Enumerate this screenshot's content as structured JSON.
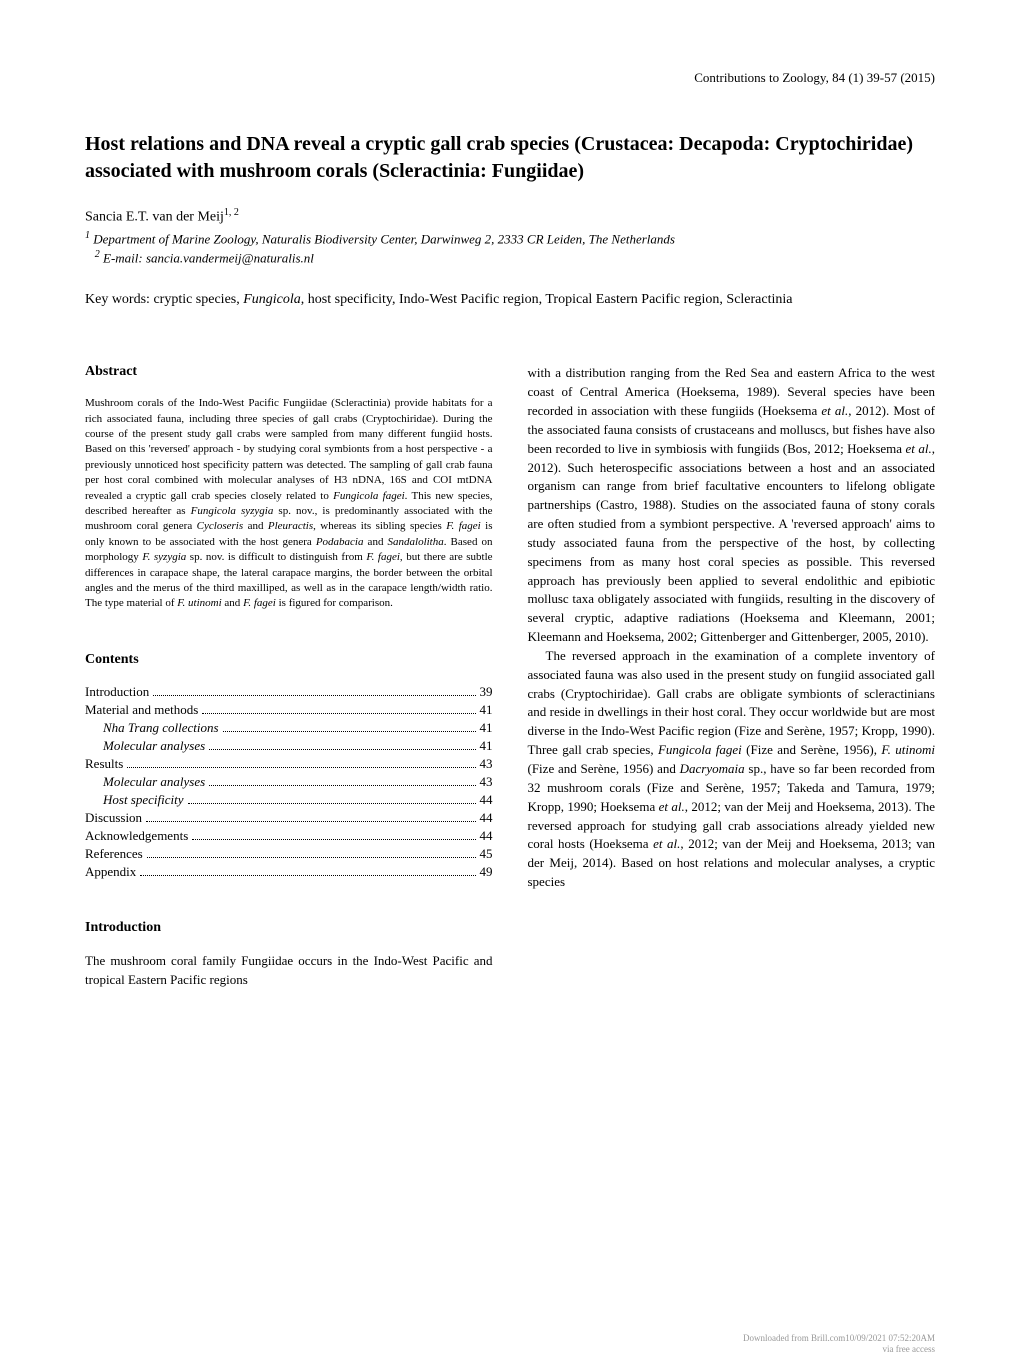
{
  "journal": {
    "name": "Contributions to Zoology",
    "volume": "84 (1)",
    "pages": "39-57",
    "year": "(2015)"
  },
  "title": "Host relations and DNA reveal a cryptic gall crab species (Crustacea: Decapoda: Cryptochiridae) associated with mushroom corals (Scleractinia: Fungiidae)",
  "author": {
    "name": "Sancia E.T. van der Meij",
    "sup": "1, 2"
  },
  "affiliations": {
    "line1_sup": "1",
    "line1": " Department of Marine Zoology, Naturalis Biodiversity Center, Darwinweg 2, 2333 CR Leiden, The Netherlands",
    "line2_sup": "2",
    "line2": " E-mail: sancia.vandermeij@naturalis.nl"
  },
  "keywords": {
    "label": "Key words: ",
    "text_before_italic": "cryptic species, ",
    "italic1": "Fungicola",
    "text_after": ", host specificity, Indo-West Pacific region, Tropical Eastern Pacific region, Scleractinia"
  },
  "abstract": {
    "heading": "Abstract",
    "text": "Mushroom corals of the Indo-West Pacific Fungiidae (Scleractinia) provide habitats for a rich associated fauna, including three species of gall crabs (Cryptochiridae). During the course of the present study gall crabs were sampled from many different fungiid hosts. Based on this 'reversed' approach - by studying coral symbionts from a host perspective - a previously unnoticed host specificity pattern was detected. The sampling of gall crab fauna per host coral combined with molecular analyses of H3 nDNA, 16S and COI mtDNA revealed a cryptic gall crab species closely related to Fungicola fagei. This new species, described hereafter as Fungicola syzygia sp. nov., is predominantly associated with the mushroom coral genera Cycloseris and Pleuractis, whereas its sibling species F. fagei is only known to be associated with the host genera Podabacia and Sandalolitha. Based on morphology F. syzygia sp. nov. is difficult to distinguish from F. fagei, but there are subtle differences in carapace shape, the lateral carapace margins, the border between the orbital angles and the merus of the third maxilliped, as well as in the carapace length/width ratio. The type material of F. utinomi and F. fagei is figured for comparison."
  },
  "contents": {
    "heading": "Contents",
    "items": [
      {
        "label": "Introduction",
        "page": "39",
        "indent": false
      },
      {
        "label": "Material and methods",
        "page": "41",
        "indent": false
      },
      {
        "label": "Nha Trang collections",
        "page": "41",
        "indent": true
      },
      {
        "label": "Molecular analyses",
        "page": "41",
        "indent": true
      },
      {
        "label": "Results",
        "page": "43",
        "indent": false
      },
      {
        "label": "Molecular analyses",
        "page": "43",
        "indent": true
      },
      {
        "label": "Host specificity",
        "page": "44",
        "indent": true
      },
      {
        "label": "Discussion",
        "page": "44",
        "indent": false
      },
      {
        "label": "Acknowledgements",
        "page": "44",
        "indent": false
      },
      {
        "label": "References",
        "page": "45",
        "indent": false
      },
      {
        "label": "Appendix",
        "page": "49",
        "indent": false
      }
    ]
  },
  "introduction": {
    "heading": "Introduction",
    "para_left": "The mushroom coral family Fungiidae occurs in the Indo-West Pacific and tropical Eastern Pacific regions",
    "para_right_1": "with a distribution ranging from the Red Sea and eastern Africa to the west coast of Central America (Hoeksema, 1989). Several species have been recorded in association with these fungiids (Hoeksema et al., 2012). Most of the associated fauna consists of crustaceans and molluscs, but fishes have also been recorded to live in symbiosis with fungiids (Bos, 2012; Hoeksema et al., 2012). Such heterospecific associations between a host and an associated organism can range from brief facultative encounters to lifelong obligate partnerships (Castro, 1988). Studies on the associated fauna of stony corals are often studied from a symbiont perspective. A 'reversed approach' aims to study associated fauna from the perspective of the host, by collecting specimens from as many host coral species as possible. This reversed approach has previously been applied to several endolithic and epibiotic mollusc taxa obligately associated with fungiids, resulting in the discovery of several cryptic, adaptive radiations (Hoeksema and Kleemann, 2001; Kleemann and Hoeksema, 2002; Gittenberger and Gittenberger, 2005, 2010).",
    "para_right_2": "The reversed approach in the examination of a complete inventory of associated fauna was also used in the present study on fungiid associated gall crabs (Cryptochiridae). Gall crabs are obligate symbionts of scleractinians and reside in dwellings in their host coral. They occur worldwide but are most diverse in the Indo-West Pacific region (Fize and Serène, 1957; Kropp, 1990). Three gall crab species, Fungicola fagei (Fize and Serène, 1956), F. utinomi (Fize and Serène, 1956) and Dacryomaia sp., have so far been recorded from 32 mushroom corals (Fize and Serène, 1957; Takeda and Tamura, 1979; Kropp, 1990; Hoeksema et al., 2012; van der Meij and Hoeksema, 2013). The reversed approach for studying gall crab associations already yielded new coral hosts (Hoeksema et al., 2012; van der Meij and Hoeksema, 2013; van der Meij, 2014). Based on host relations and molecular analyses, a cryptic species"
  },
  "footer": {
    "line1": "Downloaded from Brill.com10/09/2021 07:52:20AM",
    "line2": "via free access"
  },
  "colors": {
    "background": "#ffffff",
    "text": "#000000",
    "footer_text": "#999999"
  },
  "typography": {
    "body_font": "Georgia, Times New Roman, serif",
    "title_fontsize": 20,
    "heading_fontsize": 14,
    "body_fontsize": 13,
    "abstract_fontsize": 11,
    "footer_fontsize": 9
  }
}
